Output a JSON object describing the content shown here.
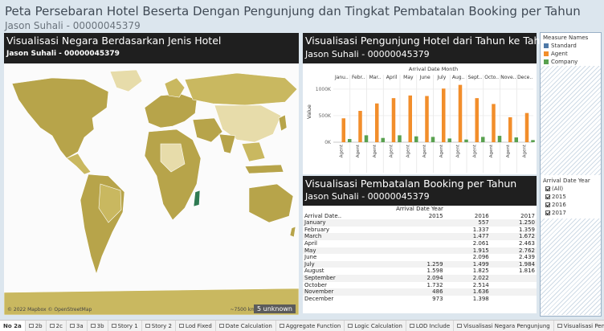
{
  "dashboard": {
    "title": "Peta Persebaran Hotel Beserta Dengan Pengunjung dan Tingkat Pembatalan Booking per Tahun",
    "author": "Jason Suhali - 00000045379"
  },
  "map_panel": {
    "title": "Visualisasi Negara Berdasarkan Jenis Hotel",
    "author": "Jason Suhali - 00000045379",
    "attribution": "© 2022 Mapbox © OpenStreetMap",
    "scale": "~7500 km",
    "unknown_badge": "5 unknown",
    "colors": {
      "ocean": "#fbfbfb",
      "land_dark": "#b7a44a",
      "land_mid": "#c9b860",
      "land_light": "#e7dcaa",
      "highlight": "#2f7a52"
    }
  },
  "visitors_panel": {
    "title": "Visualisasi Pengunjung Hotel dari Tahun ke Tahun",
    "author": "Jason Suhali - 00000045379"
  },
  "cancel_panel": {
    "title": "Visualisasi Pembatalan Booking per Tahun",
    "author": "Jason Suhali - 00000045379",
    "col_header_title": "Arrival Date Year",
    "row_header": "Arrival Date..",
    "years": [
      "2015",
      "2016",
      "2017"
    ],
    "rows": [
      {
        "month": "January",
        "y2015": "",
        "y2016": "557",
        "y2017": "1.250"
      },
      {
        "month": "February",
        "y2015": "",
        "y2016": "1.337",
        "y2017": "1.359"
      },
      {
        "month": "March",
        "y2015": "",
        "y2016": "1.477",
        "y2017": "1.672"
      },
      {
        "month": "April",
        "y2015": "",
        "y2016": "2.061",
        "y2017": "2.463"
      },
      {
        "month": "May",
        "y2015": "",
        "y2016": "1.915",
        "y2017": "2.762"
      },
      {
        "month": "June",
        "y2015": "",
        "y2016": "2.096",
        "y2017": "2.439"
      },
      {
        "month": "July",
        "y2015": "1.259",
        "y2016": "1.499",
        "y2017": "1.984"
      },
      {
        "month": "August",
        "y2015": "1.598",
        "y2016": "1.825",
        "y2017": "1.816"
      },
      {
        "month": "September",
        "y2015": "2.094",
        "y2016": "2.022",
        "y2017": ""
      },
      {
        "month": "October",
        "y2015": "1.732",
        "y2016": "2.514",
        "y2017": ""
      },
      {
        "month": "November",
        "y2015": "486",
        "y2016": "1.636",
        "y2017": ""
      },
      {
        "month": "December",
        "y2015": "973",
        "y2016": "1.398",
        "y2017": ""
      }
    ]
  },
  "legend": {
    "title": "Measure Names",
    "items": [
      {
        "label": "Standard",
        "color": "#4e79a7"
      },
      {
        "label": "Agent",
        "color": "#f28e2b"
      },
      {
        "label": "Company",
        "color": "#59a14f"
      }
    ]
  },
  "filter": {
    "title": "Arrival Date Year",
    "options": [
      "(All)",
      "2015",
      "2016",
      "2017"
    ]
  },
  "tabs": [
    "No 2a",
    "2b",
    "2c",
    "3a",
    "3b",
    "Story 1",
    "Story 2",
    "Lod Fixed",
    "Date Calculation",
    "Aggregate Function",
    "Logic Calculation",
    "LOD Include",
    "Visualisasi Negara Pengunjung",
    "Visualisasi Pengunjung Hotel da"
  ],
  "chart_data": {
    "type": "bar",
    "title": "Arrival Date Month",
    "categories": [
      "Janu..",
      "Febr..",
      "Mar..",
      "April",
      "May",
      "June",
      "July",
      "Aug..",
      "Sept..",
      "Octo..",
      "Nove..",
      "Dece.."
    ],
    "sub_category_label": "Agent",
    "ylabel": "Value",
    "yticks": [
      "0K",
      "500K",
      "1000K"
    ],
    "ylim": [
      0,
      1150000
    ],
    "series": [
      {
        "name": "Standard",
        "color": "#4e79a7",
        "values": [
          0,
          0,
          0,
          0,
          0,
          0,
          0,
          0,
          0,
          0,
          0,
          0
        ]
      },
      {
        "name": "Agent",
        "color": "#f28e2b",
        "values": [
          450000,
          590000,
          730000,
          830000,
          880000,
          870000,
          1010000,
          1080000,
          830000,
          720000,
          470000,
          550000
        ]
      },
      {
        "name": "Company",
        "color": "#59a14f",
        "values": [
          60000,
          130000,
          80000,
          130000,
          110000,
          100000,
          70000,
          50000,
          100000,
          120000,
          90000,
          40000
        ]
      }
    ]
  }
}
